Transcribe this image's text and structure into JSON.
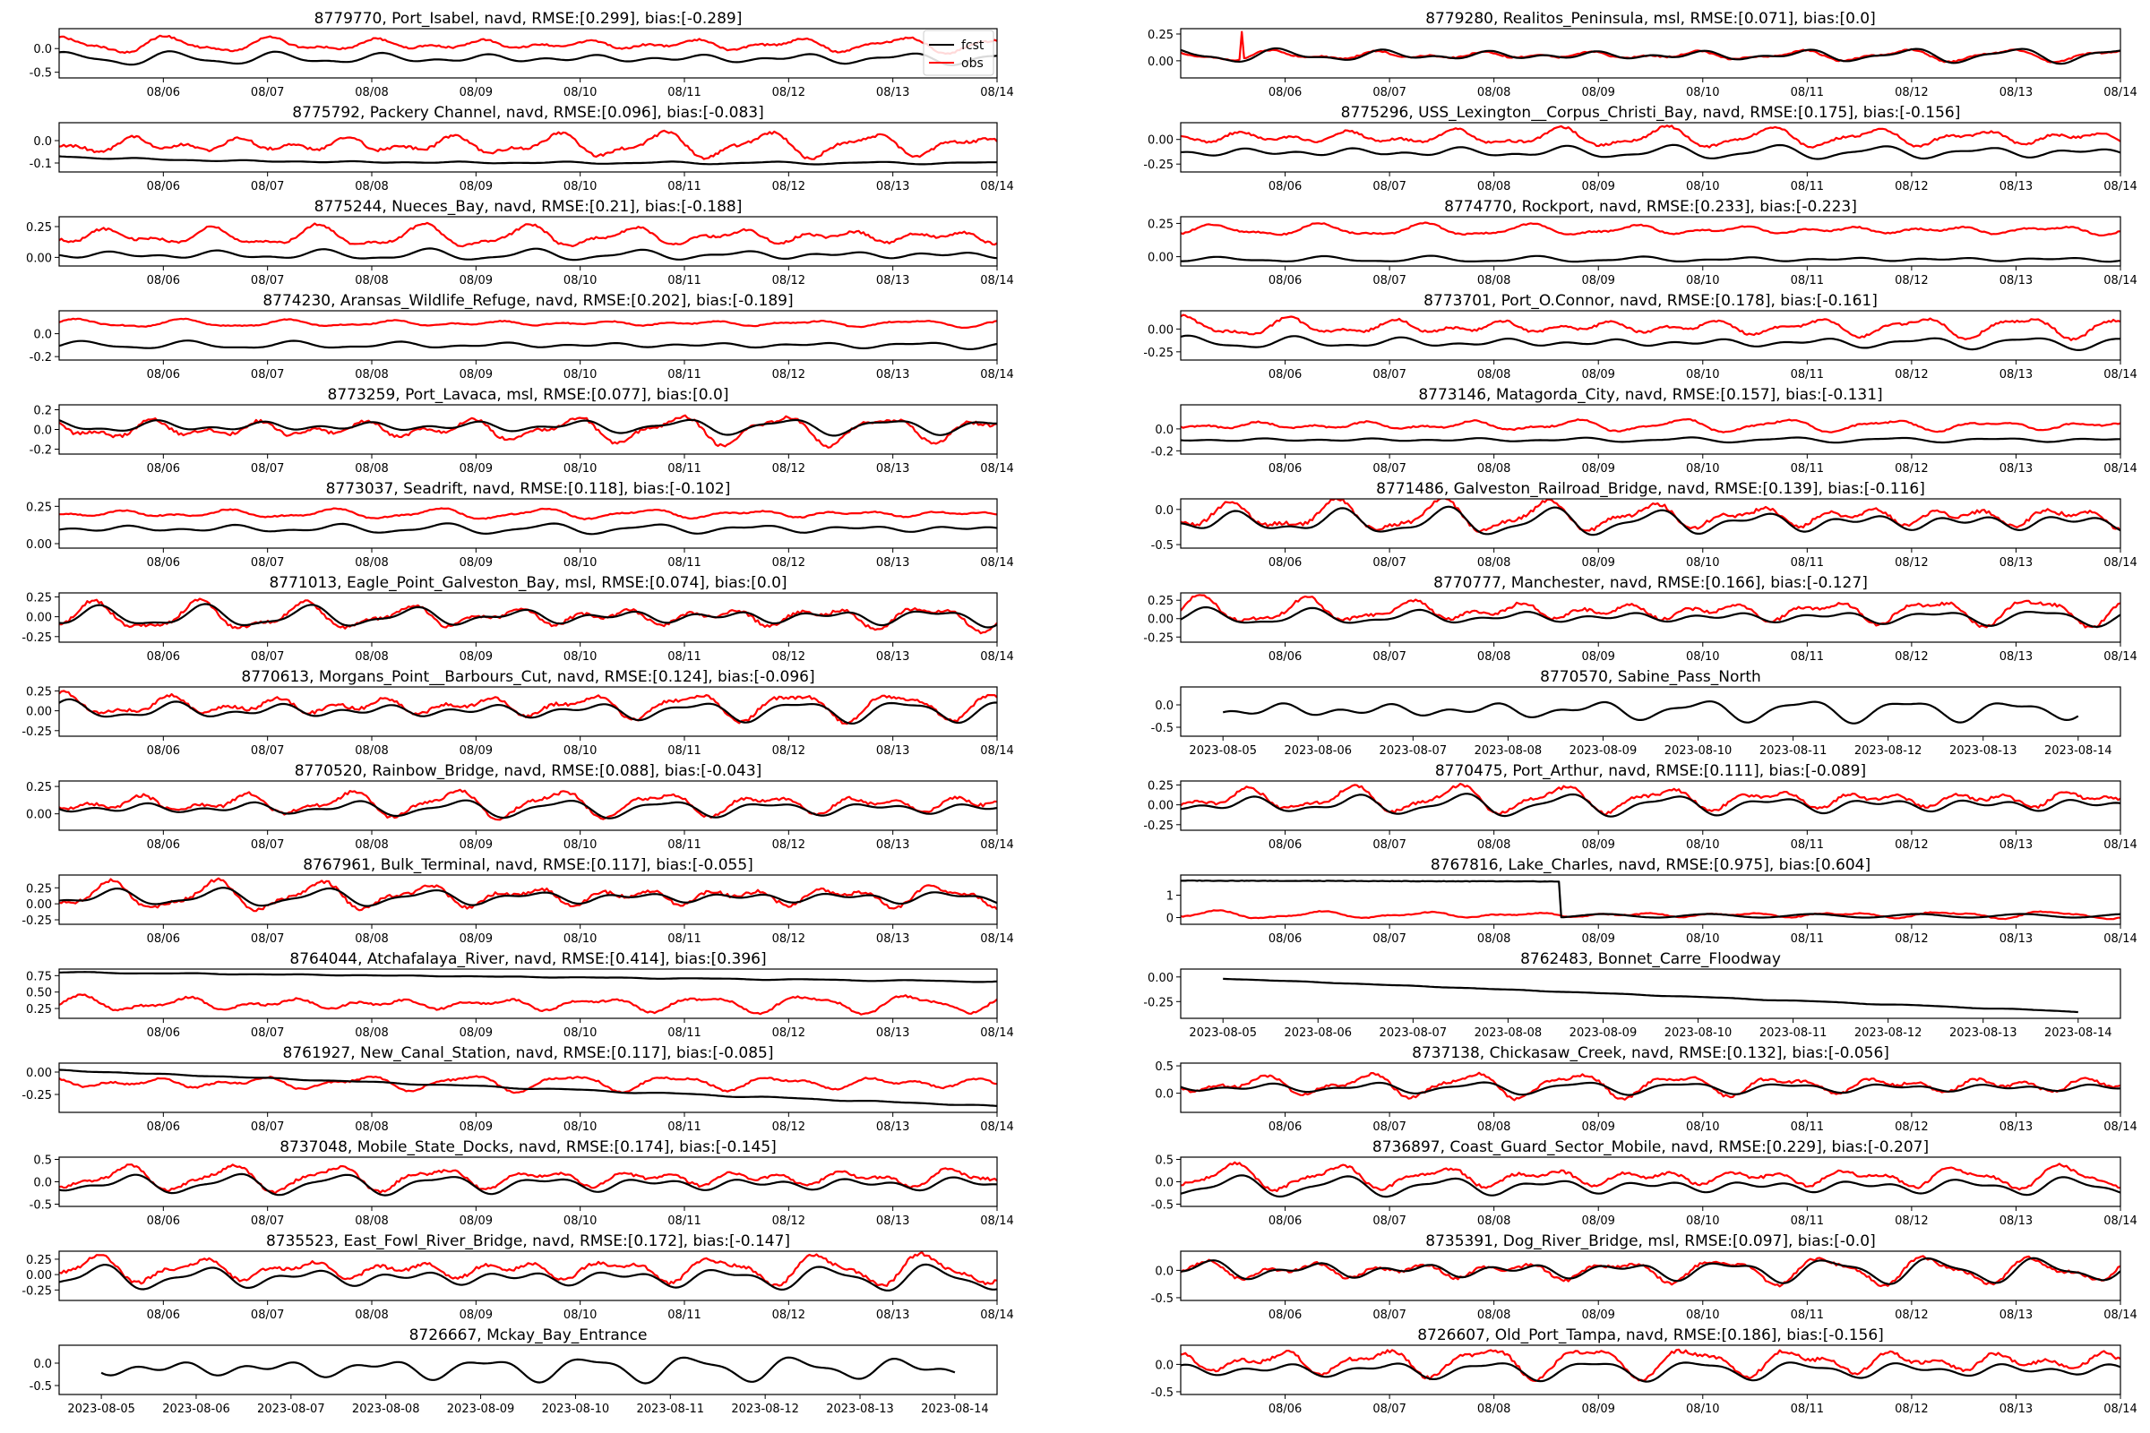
{
  "figure": {
    "background": "#ffffff",
    "colors": {
      "fcst": "#000000",
      "obs": "#ff0000",
      "axes": "#000000"
    }
  },
  "legend": {
    "entries": [
      {
        "label": "fcst",
        "color": "#000000"
      },
      {
        "label": "obs",
        "color": "#ff0000"
      }
    ],
    "placement": "top-right of first panel"
  },
  "chart_data": [
    {
      "title": "8779770, Port_Isabel, navd, RMSE:[0.299], bias:[-0.289]",
      "type": "line",
      "has_obs": true,
      "legend": true,
      "xticks": "short",
      "yticks": [
        "0.0",
        "-0.5"
      ],
      "yvals": [
        0.0,
        -0.5
      ],
      "ylim": [
        -0.62,
        0.42
      ],
      "fcst": {
        "mean": -0.21,
        "amp": 0.12
      },
      "obs": {
        "mean": 0.08,
        "amp": 0.15
      }
    },
    {
      "title": "8779280, Realitos_Peninsula, msl, RMSE:[0.071], bias:[0.0]",
      "type": "line",
      "has_obs": true,
      "xticks": "short",
      "yticks": [
        "0.25",
        "0.00"
      ],
      "yvals": [
        0.25,
        0.0
      ],
      "ylim": [
        -0.16,
        0.3
      ],
      "fcst": {
        "mean": 0.05,
        "amp": 0.06
      },
      "obs": {
        "mean": 0.05,
        "amp": 0.05
      },
      "obs_spike": {
        "x": 0.065,
        "value": 0.27
      }
    },
    {
      "title": "8775792, Packery Channel, navd, RMSE:[0.096], bias:[-0.083]",
      "type": "line",
      "has_obs": true,
      "xticks": "short",
      "yticks": [
        "0.0",
        "-0.1"
      ],
      "yvals": [
        0.0,
        -0.1
      ],
      "ylim": [
        -0.14,
        0.08
      ],
      "fcst": {
        "mean": -0.1,
        "amp": 0.005,
        "start": -0.07
      },
      "obs": {
        "mean": -0.02,
        "amp": 0.05
      }
    },
    {
      "title": "8775296, USS_Lexington__Corpus_Christi_Bay, navd, RMSE:[0.175], bias:[-0.156]",
      "type": "line",
      "has_obs": true,
      "xticks": "short",
      "yticks": [
        "0.00",
        "-0.25"
      ],
      "yvals": [
        0.0,
        -0.25
      ],
      "ylim": [
        -0.33,
        0.17
      ],
      "fcst": {
        "mean": -0.13,
        "amp": 0.06
      },
      "obs": {
        "mean": 0.02,
        "amp": 0.09
      }
    },
    {
      "title": "8775244, Nueces_Bay, navd, RMSE:[0.21], bias:[-0.188]",
      "type": "line",
      "has_obs": true,
      "xticks": "short",
      "yticks": [
        "0.25",
        "0.00"
      ],
      "yvals": [
        0.25,
        0.0
      ],
      "ylim": [
        -0.07,
        0.33
      ],
      "fcst": {
        "mean": 0.02,
        "amp": 0.04
      },
      "obs": {
        "mean": 0.17,
        "amp": 0.08
      }
    },
    {
      "title": "8774770, Rockport, navd, RMSE:[0.233], bias:[-0.223]",
      "type": "line",
      "has_obs": true,
      "xticks": "short",
      "yticks": [
        "0.25",
        "0.00"
      ],
      "yvals": [
        0.25,
        0.0
      ],
      "ylim": [
        -0.07,
        0.3
      ],
      "fcst": {
        "mean": -0.02,
        "amp": 0.02
      },
      "obs": {
        "mean": 0.2,
        "amp": 0.04
      }
    },
    {
      "title": "8774230, Aransas_Wildlife_Refuge, navd, RMSE:[0.202], bias:[-0.189]",
      "type": "line",
      "has_obs": true,
      "xticks": "short",
      "yticks": [
        "0.0",
        "-0.2"
      ],
      "yvals": [
        0.0,
        -0.2
      ],
      "ylim": [
        -0.23,
        0.2
      ],
      "fcst": {
        "mean": -0.1,
        "amp": 0.03
      },
      "obs": {
        "mean": 0.09,
        "amp": 0.03
      }
    },
    {
      "title": "8773701, Port_O.Connor, navd, RMSE:[0.178], bias:[-0.161]",
      "type": "line",
      "has_obs": true,
      "xticks": "short",
      "yticks": [
        "0.00",
        "-0.25"
      ],
      "yvals": [
        0.0,
        -0.25
      ],
      "ylim": [
        -0.34,
        0.2
      ],
      "fcst": {
        "mean": -0.15,
        "amp": 0.06
      },
      "obs": {
        "mean": 0.02,
        "amp": 0.1
      }
    },
    {
      "title": "8773259, Port_Lavaca, msl, RMSE:[0.077], bias:[0.0]",
      "type": "line",
      "has_obs": true,
      "xticks": "short",
      "yticks": [
        "0.2",
        "0.0",
        "-0.2"
      ],
      "yvals": [
        0.2,
        0.0,
        -0.2
      ],
      "ylim": [
        -0.25,
        0.25
      ],
      "fcst": {
        "mean": 0.03,
        "amp": 0.07
      },
      "obs": {
        "mean": 0.0,
        "amp": 0.13
      }
    },
    {
      "title": "8773146, Matagorda_City, navd, RMSE:[0.157], bias:[-0.131]",
      "type": "line",
      "has_obs": true,
      "xticks": "short",
      "yticks": [
        "0.0",
        "-0.2"
      ],
      "yvals": [
        0.0,
        -0.2
      ],
      "ylim": [
        -0.23,
        0.22
      ],
      "fcst": {
        "mean": -0.1,
        "amp": 0.02
      },
      "obs": {
        "mean": 0.03,
        "amp": 0.05
      }
    },
    {
      "title": "8773037, Seadrift, navd, RMSE:[0.118], bias:[-0.102]",
      "type": "line",
      "has_obs": true,
      "xticks": "short",
      "yticks": [
        "0.25",
        "0.00"
      ],
      "yvals": [
        0.25,
        0.0
      ],
      "ylim": [
        -0.03,
        0.3
      ],
      "fcst": {
        "mean": 0.1,
        "amp": 0.03
      },
      "obs": {
        "mean": 0.2,
        "amp": 0.03
      }
    },
    {
      "title": "8771486, Galveston_Railroad_Bridge, navd, RMSE:[0.139], bias:[-0.116]",
      "type": "line",
      "has_obs": true,
      "xticks": "short",
      "yticks": [
        "0.0",
        "-0.5"
      ],
      "yvals": [
        0.0,
        -0.5
      ],
      "ylim": [
        -0.55,
        0.15
      ],
      "fcst": {
        "mean": -0.18,
        "amp": 0.17
      },
      "obs": {
        "mean": -0.1,
        "amp": 0.2
      }
    },
    {
      "title": "8771013, Eagle_Point_Galveston_Bay, msl, RMSE:[0.074], bias:[0.0]",
      "type": "line",
      "has_obs": true,
      "xticks": "short",
      "yticks": [
        "0.25",
        "0.00",
        "-0.25"
      ],
      "yvals": [
        0.25,
        0.0,
        -0.25
      ],
      "ylim": [
        -0.32,
        0.3
      ],
      "fcst": {
        "mean": 0.0,
        "amp": 0.12
      },
      "obs": {
        "mean": 0.0,
        "amp": 0.16
      }
    },
    {
      "title": "8770777, Manchester, navd, RMSE:[0.166], bias:[-0.127]",
      "type": "line",
      "has_obs": true,
      "xticks": "short",
      "yticks": [
        "0.25",
        "0.00",
        "-0.25"
      ],
      "yvals": [
        0.25,
        0.0,
        -0.25
      ],
      "ylim": [
        -0.32,
        0.35
      ],
      "fcst": {
        "mean": 0.02,
        "amp": 0.1
      },
      "obs": {
        "mean": 0.1,
        "amp": 0.17
      }
    },
    {
      "title": "8770613, Morgans_Point__Barbours_Cut, navd, RMSE:[0.124], bias:[-0.096]",
      "type": "line",
      "has_obs": true,
      "xticks": "short",
      "yticks": [
        "0.25",
        "0.00",
        "-0.25"
      ],
      "yvals": [
        0.25,
        0.0,
        -0.25
      ],
      "ylim": [
        -0.32,
        0.3
      ],
      "fcst": {
        "mean": 0.0,
        "amp": 0.12
      },
      "obs": {
        "mean": 0.06,
        "amp": 0.16
      }
    },
    {
      "title": "8770570, Sabine_Pass_North",
      "type": "line",
      "has_obs": false,
      "xticks": "long",
      "yticks": [
        "0.0",
        "-0.5"
      ],
      "yvals": [
        0.0,
        -0.5
      ],
      "ylim": [
        -0.7,
        0.4
      ],
      "fcst": {
        "mean": -0.12,
        "amp": 0.22
      }
    },
    {
      "title": "8770520, Rainbow_Bridge, navd, RMSE:[0.088], bias:[-0.043]",
      "type": "line",
      "has_obs": true,
      "xticks": "short",
      "yticks": [
        "0.25",
        "0.00"
      ],
      "yvals": [
        0.25,
        0.0
      ],
      "ylim": [
        -0.15,
        0.3
      ],
      "fcst": {
        "mean": 0.05,
        "amp": 0.07
      },
      "obs": {
        "mean": 0.09,
        "amp": 0.11
      }
    },
    {
      "title": "8770475, Port_Arthur, navd, RMSE:[0.111], bias:[-0.089]",
      "type": "line",
      "has_obs": true,
      "xticks": "short",
      "yticks": [
        "0.25",
        "0.00",
        "-0.25"
      ],
      "yvals": [
        0.25,
        0.0,
        -0.25
      ],
      "ylim": [
        -0.32,
        0.3
      ],
      "fcst": {
        "mean": 0.0,
        "amp": 0.12
      },
      "obs": {
        "mean": 0.07,
        "amp": 0.15
      }
    },
    {
      "title": "8767961, Bulk_Terminal, navd, RMSE:[0.117], bias:[-0.055]",
      "type": "line",
      "has_obs": true,
      "xticks": "short",
      "yticks": [
        "0.50",
        "0.25",
        "0.00",
        "-0.25"
      ],
      "yvals": [
        0.5,
        0.25,
        0.0,
        -0.25
      ],
      "ylim": [
        -0.32,
        0.45
      ],
      "fcst": {
        "mean": 0.1,
        "amp": 0.12
      },
      "obs": {
        "mean": 0.12,
        "amp": 0.2
      }
    },
    {
      "title": "8767816, Lake_Charles, navd, RMSE:[0.975], bias:[0.604]",
      "type": "line",
      "has_obs": true,
      "xticks": "short",
      "yticks": [
        "1",
        "0"
      ],
      "yvals": [
        1,
        0
      ],
      "ylim": [
        -0.3,
        1.9
      ],
      "fcst": {
        "mean": 0.08,
        "amp": 0.08,
        "high": 1.65,
        "drop_at": 0.405
      },
      "obs": {
        "mean": 0.12,
        "amp": 0.15
      }
    },
    {
      "title": "8764044, Atchafalaya_River, navd, RMSE:[0.414], bias:[0.396]",
      "type": "line",
      "has_obs": true,
      "xticks": "short",
      "yticks": [
        "0.75",
        "0.50",
        "0.25"
      ],
      "yvals": [
        0.75,
        0.5,
        0.25
      ],
      "ylim": [
        0.1,
        0.85
      ],
      "fcst": {
        "mean": 0.72,
        "amp": 0.02,
        "start": 0.8,
        "end": 0.66
      },
      "obs": {
        "mean": 0.32,
        "amp": 0.12
      }
    },
    {
      "title": "8762483, Bonnet_Carre_Floodway",
      "type": "line",
      "has_obs": false,
      "xticks": "long",
      "yticks": [
        "0.00",
        "-0.25"
      ],
      "yvals": [
        0.0,
        -0.25
      ],
      "ylim": [
        -0.42,
        0.08
      ],
      "fcst": {
        "mean": -0.22,
        "amp": 0.01,
        "start": 0.0,
        "end": -0.37
      }
    },
    {
      "title": "8761927, New_Canal_Station, navd, RMSE:[0.117], bias:[-0.085]",
      "type": "line",
      "has_obs": true,
      "xticks": "short",
      "yticks": [
        "0.00",
        "-0.25"
      ],
      "yvals": [
        0.0,
        -0.25
      ],
      "ylim": [
        -0.45,
        0.1
      ],
      "fcst": {
        "mean": -0.2,
        "amp": 0.02,
        "start": 0.02,
        "end": -0.38
      },
      "obs": {
        "mean": -0.12,
        "amp": 0.08
      }
    },
    {
      "title": "8737138, Chickasaw_Creek, navd, RMSE:[0.132], bias:[-0.056]",
      "type": "line",
      "has_obs": true,
      "xticks": "short",
      "yticks": [
        "0.5",
        "0.0"
      ],
      "yvals": [
        0.5,
        0.0
      ],
      "ylim": [
        -0.35,
        0.55
      ],
      "fcst": {
        "mean": 0.1,
        "amp": 0.1
      },
      "obs": {
        "mean": 0.15,
        "amp": 0.2
      }
    },
    {
      "title": "8737048, Mobile_State_Docks, navd, RMSE:[0.174], bias:[-0.145]",
      "type": "line",
      "has_obs": true,
      "xticks": "short",
      "yticks": [
        "0.5",
        "0.0",
        "-0.5"
      ],
      "yvals": [
        0.5,
        0.0,
        -0.5
      ],
      "ylim": [
        -0.55,
        0.55
      ],
      "fcst": {
        "mean": -0.05,
        "amp": 0.2
      },
      "obs": {
        "mean": 0.08,
        "amp": 0.25
      }
    },
    {
      "title": "8736897, Coast_Guard_Sector_Mobile, navd, RMSE:[0.229], bias:[-0.207]",
      "type": "line",
      "has_obs": true,
      "xticks": "short",
      "yticks": [
        "0.5",
        "0.0",
        "-0.5"
      ],
      "yvals": [
        0.5,
        0.0,
        -0.5
      ],
      "ylim": [
        -0.55,
        0.55
      ],
      "fcst": {
        "mean": -0.1,
        "amp": 0.2
      },
      "obs": {
        "mean": 0.1,
        "amp": 0.25
      }
    },
    {
      "title": "8735523, East_Fowl_River_Bridge, navd, RMSE:[0.172], bias:[-0.147]",
      "type": "line",
      "has_obs": true,
      "xticks": "short",
      "yticks": [
        "0.25",
        "0.00",
        "-0.25"
      ],
      "yvals": [
        0.25,
        0.0,
        -0.25
      ],
      "ylim": [
        -0.42,
        0.38
      ],
      "fcst": {
        "mean": -0.05,
        "amp": 0.18
      },
      "obs": {
        "mean": 0.08,
        "amp": 0.22
      }
    },
    {
      "title": "8735391, Dog_River_Bridge, msl, RMSE:[0.097], bias:[-0.0]",
      "type": "line",
      "has_obs": true,
      "xticks": "short",
      "yticks": [
        "0.0",
        "-0.5"
      ],
      "yvals": [
        0.0,
        -0.5
      ],
      "ylim": [
        -0.55,
        0.35
      ],
      "fcst": {
        "mean": 0.0,
        "amp": 0.2
      },
      "obs": {
        "mean": 0.0,
        "amp": 0.22
      }
    },
    {
      "title": "8726667, Mckay_Bay_Entrance",
      "type": "line",
      "has_obs": false,
      "xticks": "long",
      "yticks": [
        "0.0",
        "-0.5"
      ],
      "yvals": [
        0.0,
        -0.5
      ],
      "ylim": [
        -0.7,
        0.4
      ],
      "fcst": {
        "mean": -0.12,
        "amp": 0.25
      }
    },
    {
      "title": "8726607, Old_Port_Tampa, navd, RMSE:[0.186], bias:[-0.156]",
      "type": "line",
      "has_obs": true,
      "xticks": "short",
      "yticks": [
        "0.0",
        "-0.5"
      ],
      "yvals": [
        0.0,
        -0.5
      ],
      "ylim": [
        -0.55,
        0.35
      ],
      "fcst": {
        "mean": -0.1,
        "amp": 0.16
      },
      "obs": {
        "mean": 0.05,
        "amp": 0.25
      }
    }
  ],
  "x_axis": {
    "short_ticks": [
      "08/06",
      "08/07",
      "08/08",
      "08/09",
      "08/10",
      "08/11",
      "08/12",
      "08/13",
      "08/14"
    ],
    "long_ticks": [
      "2023-08-05",
      "2023-08-06",
      "2023-08-07",
      "2023-08-08",
      "2023-08-09",
      "2023-08-10",
      "2023-08-11",
      "2023-08-12",
      "2023-08-13",
      "2023-08-14"
    ],
    "range": [
      "2023-08-05",
      "2023-08-14"
    ]
  }
}
